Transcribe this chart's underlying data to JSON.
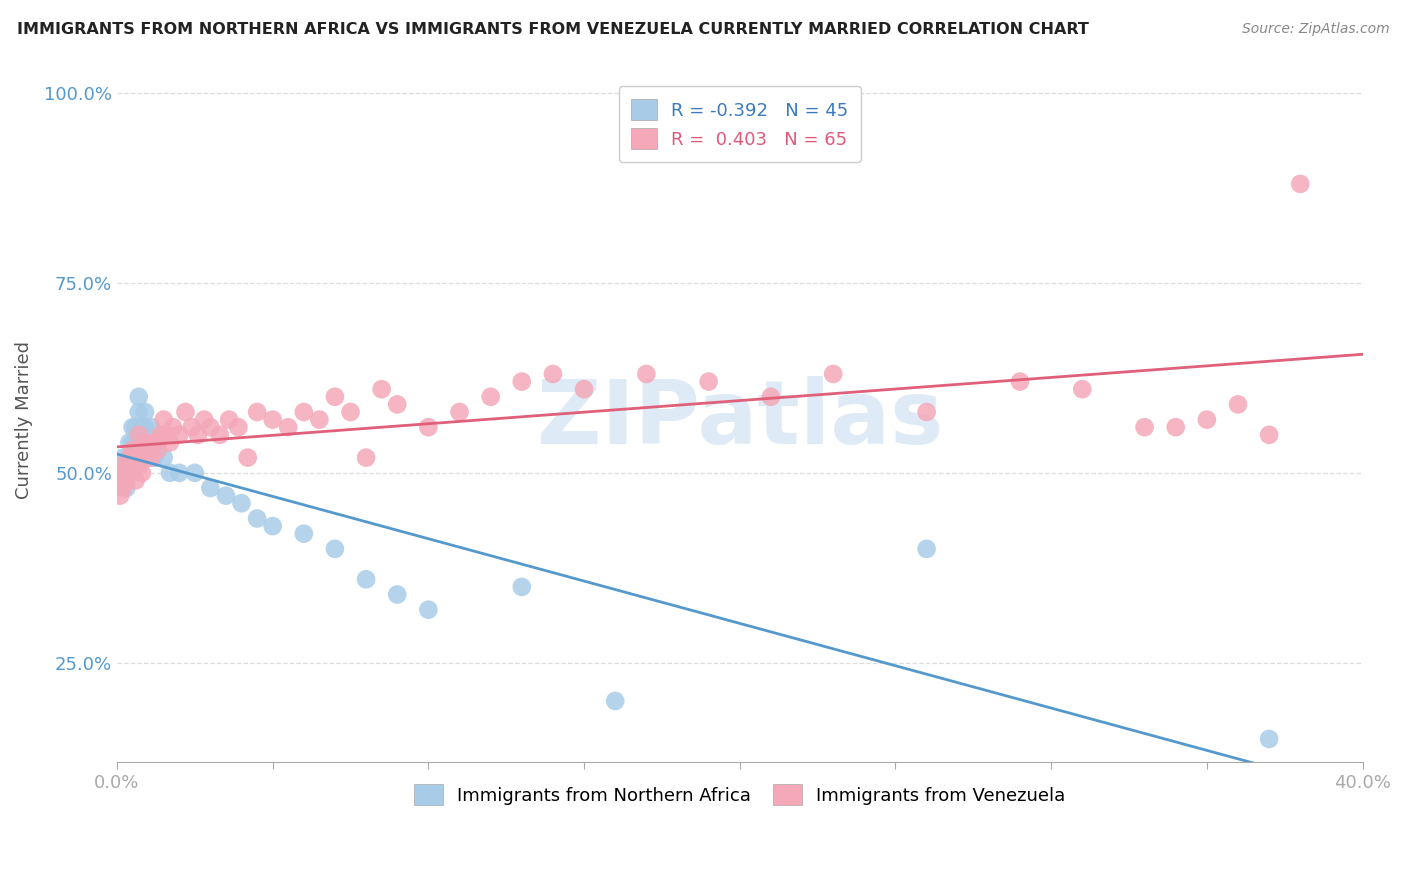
{
  "title": "IMMIGRANTS FROM NORTHERN AFRICA VS IMMIGRANTS FROM VENEZUELA CURRENTLY MARRIED CORRELATION CHART",
  "source": "Source: ZipAtlas.com",
  "ylabel": "Currently Married",
  "series": [
    {
      "name": "Immigrants from Northern Africa",
      "color": "#a8cce8",
      "line_color": "#5599cc",
      "R": -0.392,
      "N": 45,
      "x": [
        0.001,
        0.001,
        0.002,
        0.002,
        0.003,
        0.003,
        0.003,
        0.004,
        0.004,
        0.004,
        0.005,
        0.005,
        0.005,
        0.006,
        0.006,
        0.006,
        0.007,
        0.007,
        0.008,
        0.008,
        0.009,
        0.009,
        0.01,
        0.01,
        0.011,
        0.012,
        0.013,
        0.015,
        0.017,
        0.02,
        0.025,
        0.03,
        0.035,
        0.04,
        0.045,
        0.05,
        0.06,
        0.07,
        0.08,
        0.09,
        0.1,
        0.13,
        0.16,
        0.26,
        0.37
      ],
      "y": [
        0.49,
        0.51,
        0.5,
        0.52,
        0.51,
        0.5,
        0.48,
        0.54,
        0.52,
        0.5,
        0.56,
        0.54,
        0.52,
        0.56,
        0.54,
        0.52,
        0.6,
        0.58,
        0.56,
        0.54,
        0.58,
        0.56,
        0.54,
        0.52,
        0.56,
        0.52,
        0.54,
        0.52,
        0.5,
        0.5,
        0.5,
        0.48,
        0.47,
        0.46,
        0.44,
        0.43,
        0.42,
        0.4,
        0.36,
        0.34,
        0.32,
        0.35,
        0.2,
        0.4,
        0.15
      ]
    },
    {
      "name": "Immigrants from Venezuela",
      "color": "#f4a8b8",
      "line_color": "#e0607a",
      "R": 0.403,
      "N": 65,
      "x": [
        0.001,
        0.001,
        0.002,
        0.002,
        0.003,
        0.003,
        0.004,
        0.004,
        0.005,
        0.005,
        0.006,
        0.006,
        0.007,
        0.007,
        0.008,
        0.008,
        0.009,
        0.01,
        0.011,
        0.012,
        0.013,
        0.014,
        0.015,
        0.016,
        0.017,
        0.018,
        0.02,
        0.022,
        0.024,
        0.026,
        0.028,
        0.03,
        0.033,
        0.036,
        0.039,
        0.042,
        0.045,
        0.05,
        0.055,
        0.06,
        0.065,
        0.07,
        0.075,
        0.08,
        0.085,
        0.09,
        0.1,
        0.11,
        0.12,
        0.13,
        0.14,
        0.15,
        0.17,
        0.19,
        0.21,
        0.23,
        0.26,
        0.29,
        0.31,
        0.33,
        0.34,
        0.35,
        0.36,
        0.37,
        0.38
      ],
      "y": [
        0.47,
        0.5,
        0.48,
        0.51,
        0.5,
        0.49,
        0.52,
        0.5,
        0.51,
        0.53,
        0.49,
        0.52,
        0.51,
        0.55,
        0.52,
        0.5,
        0.54,
        0.53,
        0.52,
        0.54,
        0.53,
        0.55,
        0.57,
        0.55,
        0.54,
        0.56,
        0.55,
        0.58,
        0.56,
        0.55,
        0.57,
        0.56,
        0.55,
        0.57,
        0.56,
        0.52,
        0.58,
        0.57,
        0.56,
        0.58,
        0.57,
        0.6,
        0.58,
        0.52,
        0.61,
        0.59,
        0.56,
        0.58,
        0.6,
        0.62,
        0.63,
        0.61,
        0.63,
        0.62,
        0.6,
        0.63,
        0.58,
        0.62,
        0.61,
        0.56,
        0.56,
        0.57,
        0.59,
        0.55,
        0.88
      ]
    }
  ],
  "xlim": [
    0.0,
    0.4
  ],
  "ylim": [
    0.12,
    1.02
  ],
  "yticks": [
    0.25,
    0.5,
    0.75,
    1.0
  ],
  "ytick_labels": [
    "25.0%",
    "50.0%",
    "75.0%",
    "100.0%"
  ],
  "xticks": [
    0.0,
    0.05,
    0.1,
    0.15,
    0.2,
    0.25,
    0.3,
    0.35,
    0.4
  ],
  "xtick_labels": [
    "0.0%",
    "",
    "",
    "",
    "",
    "",
    "",
    "",
    "40.0%"
  ],
  "background_color": "#ffffff",
  "grid_color": "#dddddd",
  "watermark_text": "ZIPatlas",
  "watermark_color": "#c8ddf0",
  "legend_blue_R": "-0.392",
  "legend_blue_N": "45",
  "legend_pink_R": "0.403",
  "legend_pink_N": "65"
}
